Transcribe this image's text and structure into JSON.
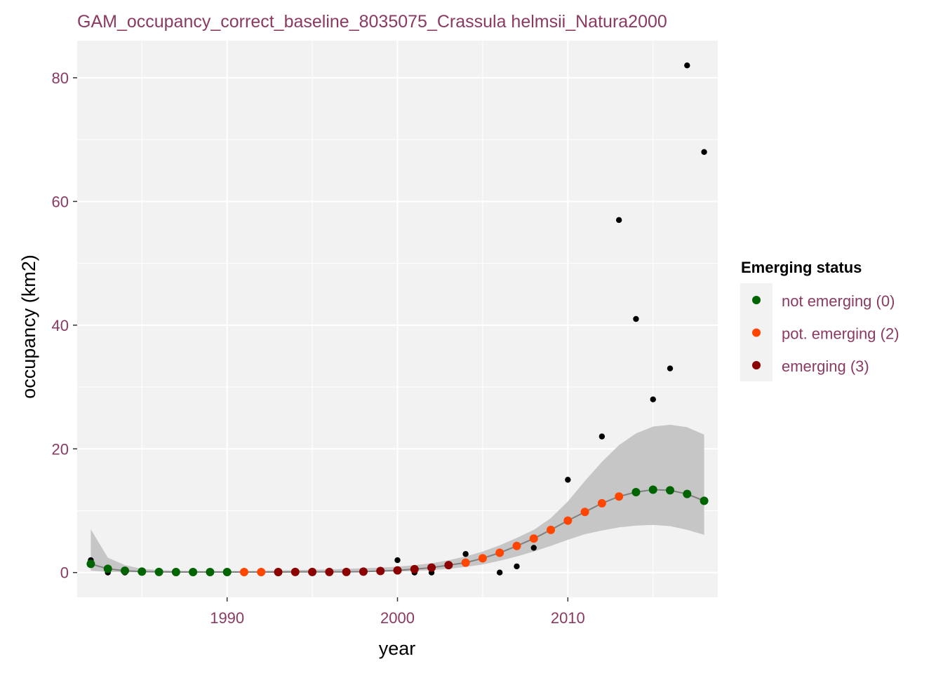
{
  "colors": {
    "text": "#8B3A62",
    "panel": "#F2F2F2",
    "grid": "#FFFFFF",
    "ribbon": "#C6C6C6",
    "fit_line": "#808080",
    "observed": "#000000",
    "status_0": "#006400",
    "status_2": "#FF4500",
    "status_3": "#8B0000"
  },
  "chart_data": {
    "type": "scatter",
    "title": "GAM_occupancy_correct_baseline_8035075_Crassula helmsii_Natura2000",
    "xlabel": "year",
    "ylabel": "occupancy (km2)",
    "xlim": [
      1981.2,
      2018.8
    ],
    "ylim": [
      -4,
      86
    ],
    "x_ticks": [
      1990,
      2000,
      2010
    ],
    "y_ticks": [
      0,
      20,
      40,
      60,
      80
    ],
    "x_tick_labels": [
      "1990",
      "2000",
      "2010"
    ],
    "y_tick_labels": [
      "0",
      "20",
      "40",
      "60",
      "80"
    ],
    "grid": true,
    "legend": {
      "title": "Emerging status",
      "placement": "right",
      "entries": [
        {
          "label": "not emerging (0)",
          "status": 0
        },
        {
          "label": "pot. emerging (2)",
          "status": 2
        },
        {
          "label": "emerging (3)",
          "status": 3
        }
      ]
    },
    "observed": {
      "x": [
        1982,
        1983,
        1984,
        2000,
        2001,
        2002,
        2004,
        2006,
        2007,
        2008,
        2010,
        2012,
        2013,
        2014,
        2015,
        2016,
        2017,
        2018
      ],
      "y": [
        2,
        0,
        0,
        2,
        0,
        0,
        3,
        0,
        1,
        4,
        15,
        22,
        57,
        41,
        28,
        33,
        82,
        68
      ]
    },
    "fitted": {
      "x": [
        1982,
        1983,
        1984,
        1985,
        1986,
        1987,
        1988,
        1989,
        1990,
        1991,
        1992,
        1993,
        1994,
        1995,
        1996,
        1997,
        1998,
        1999,
        2000,
        2001,
        2002,
        2003,
        2004,
        2005,
        2006,
        2007,
        2008,
        2009,
        2010,
        2011,
        2012,
        2013,
        2014,
        2015,
        2016,
        2017,
        2018
      ],
      "y": [
        1.4,
        0.6,
        0.3,
        0.15,
        0.1,
        0.08,
        0.08,
        0.08,
        0.08,
        0.08,
        0.08,
        0.08,
        0.1,
        0.1,
        0.1,
        0.1,
        0.15,
        0.25,
        0.35,
        0.55,
        0.8,
        1.2,
        1.6,
        2.3,
        3.2,
        4.3,
        5.5,
        6.9,
        8.4,
        9.8,
        11.2,
        12.3,
        13.0,
        13.4,
        13.3,
        12.7,
        11.6
      ],
      "status": [
        0,
        0,
        0,
        0,
        0,
        0,
        0,
        0,
        0,
        2,
        2,
        3,
        3,
        3,
        3,
        3,
        3,
        3,
        3,
        3,
        3,
        3,
        2,
        2,
        2,
        2,
        2,
        2,
        2,
        2,
        2,
        2,
        0,
        0,
        0,
        0,
        0
      ],
      "lower": [
        0.3,
        0.1,
        0.05,
        0.03,
        0.02,
        0.02,
        0.02,
        0.02,
        0.02,
        0.02,
        0.02,
        0.02,
        0.02,
        0.02,
        0.03,
        0.04,
        0.06,
        0.1,
        0.15,
        0.25,
        0.4,
        0.6,
        0.9,
        1.3,
        1.9,
        2.6,
        3.4,
        4.3,
        5.3,
        6.2,
        6.8,
        7.3,
        7.6,
        7.7,
        7.5,
        6.9,
        6.1
      ],
      "upper": [
        7.0,
        2.4,
        1.2,
        0.6,
        0.4,
        0.3,
        0.25,
        0.25,
        0.25,
        0.25,
        0.3,
        0.35,
        0.4,
        0.45,
        0.5,
        0.6,
        0.7,
        0.8,
        0.95,
        1.2,
        1.5,
        2.0,
        2.6,
        3.4,
        4.4,
        5.6,
        6.9,
        8.8,
        11.5,
        14.8,
        17.9,
        20.6,
        22.5,
        23.6,
        23.9,
        23.5,
        22.3
      ]
    }
  }
}
